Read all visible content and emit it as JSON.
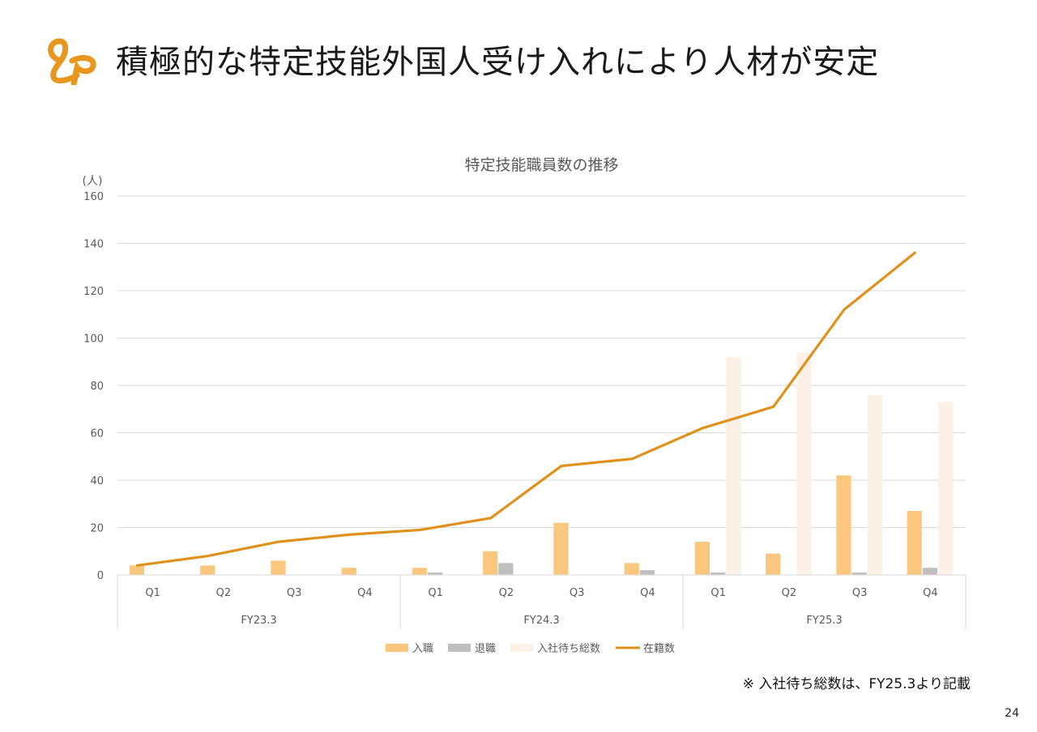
{
  "header": {
    "title": "積極的な特定技能外国人受け入れにより人材が安定"
  },
  "footnote": "※ 入社待ち総数は、FY25.3より記載",
  "page_number": "24",
  "colors": {
    "brand": "#E8961E",
    "hire": "#FBC77E",
    "leave": "#BFBFBF",
    "waiting": "#FDF1E6",
    "enrolled": "#E0911B",
    "grid": "#D9D9D9",
    "text": "#595959"
  },
  "chart_data": {
    "type": "bar",
    "title": "特定技能職員数の推移",
    "ylabel": "(人)",
    "ylim": [
      0,
      160
    ],
    "yticks": [
      0,
      20,
      40,
      60,
      80,
      100,
      120,
      140,
      160
    ],
    "grid": true,
    "legend_position": "bottom",
    "categories": [
      "Q1",
      "Q2",
      "Q3",
      "Q4",
      "Q1",
      "Q2",
      "Q3",
      "Q4",
      "Q1",
      "Q2",
      "Q3",
      "Q4"
    ],
    "groups": [
      {
        "label": "FY23.3",
        "span": 4
      },
      {
        "label": "FY24.3",
        "span": 4
      },
      {
        "label": "FY25.3",
        "span": 4
      }
    ],
    "series": [
      {
        "name": "入職",
        "kind": "bar",
        "values": [
          4,
          4,
          6,
          3,
          3,
          10,
          22,
          5,
          14,
          9,
          42,
          27
        ]
      },
      {
        "name": "退職",
        "kind": "bar",
        "values": [
          0,
          0,
          0,
          0,
          1,
          5,
          0,
          2,
          1,
          0,
          1,
          3
        ]
      },
      {
        "name": "入社待ち総数",
        "kind": "bar",
        "values": [
          null,
          null,
          null,
          null,
          null,
          null,
          null,
          null,
          92,
          94,
          76,
          73
        ]
      },
      {
        "name": "在籍数",
        "kind": "line",
        "values": [
          4,
          8,
          14,
          17,
          19,
          24,
          46,
          49,
          62,
          71,
          112,
          136
        ]
      }
    ]
  }
}
